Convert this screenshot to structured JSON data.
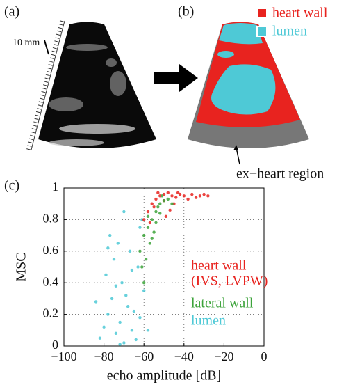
{
  "figure": {
    "panel_a": {
      "label": "(a)",
      "scale_note": "10 mm"
    },
    "panel_b": {
      "label": "(b)",
      "legend": [
        "heart wall",
        "lumen"
      ],
      "annotation": "ex−heart region"
    },
    "panel_c": {
      "label": "(c)"
    }
  },
  "chart_data": {
    "type": "scatter",
    "xlabel": "echo amplitude [dB]",
    "ylabel": "MSC",
    "xlim": [
      -100,
      0
    ],
    "ylim": [
      0,
      1
    ],
    "xticks": [
      {
        "value": -100,
        "label": "−100"
      },
      {
        "value": -80,
        "label": "−80"
      },
      {
        "value": -60,
        "label": "−60"
      },
      {
        "value": -40,
        "label": "−40"
      },
      {
        "value": -20,
        "label": "−20"
      },
      0
    ],
    "yticks": [
      0,
      0.2,
      0.4,
      0.6,
      0.8,
      1
    ],
    "grid": true,
    "series": [
      {
        "name": "lumen",
        "color": "#4ec9d6",
        "x": [
          -82,
          -80,
          -78,
          -76,
          -74,
          -72,
          -70,
          -68,
          -66,
          -64,
          -62,
          -60,
          -79,
          -75,
          -71,
          -67,
          -63,
          -77,
          -73,
          -69,
          -65,
          -61,
          -84,
          -58,
          -70,
          -66,
          -74,
          -78,
          -62,
          -72
        ],
        "values": [
          0.05,
          0.12,
          0.2,
          0.3,
          0.08,
          0.15,
          0.02,
          0.25,
          0.1,
          0.04,
          0.18,
          0.35,
          0.45,
          0.55,
          0.4,
          0.6,
          0.5,
          0.7,
          0.65,
          0.32,
          0.22,
          0.8,
          0.28,
          0.1,
          0.85,
          0.48,
          0.38,
          0.62,
          0.75,
          0.01
        ]
      },
      {
        "name": "heart wall",
        "name_line2": "(IVS, LVPW)",
        "color": "#e8231f",
        "x": [
          -60,
          -58,
          -56,
          -54,
          -52,
          -50,
          -48,
          -46,
          -44,
          -42,
          -40,
          -38,
          -36,
          -34,
          -32,
          -30,
          -28,
          -55,
          -50,
          -45,
          -47,
          -53,
          -43,
          -57,
          -49
        ],
        "values": [
          0.8,
          0.85,
          0.9,
          0.93,
          0.95,
          0.96,
          0.97,
          0.95,
          0.94,
          0.96,
          0.95,
          0.93,
          0.96,
          0.94,
          0.95,
          0.96,
          0.95,
          0.88,
          0.92,
          0.9,
          0.86,
          0.97,
          0.97,
          0.78,
          0.82
        ]
      },
      {
        "name": "lateral wall",
        "color": "#3ca33a",
        "x": [
          -62,
          -60,
          -58,
          -56,
          -54,
          -52,
          -50,
          -59,
          -57,
          -55,
          -53,
          -61,
          -51,
          -58,
          -56,
          -54,
          -60,
          -52,
          -48,
          -46
        ],
        "values": [
          0.6,
          0.7,
          0.75,
          0.8,
          0.85,
          0.9,
          0.92,
          0.55,
          0.65,
          0.72,
          0.88,
          0.5,
          0.95,
          0.82,
          0.68,
          0.78,
          0.4,
          0.84,
          0.93,
          0.9
        ]
      }
    ]
  }
}
